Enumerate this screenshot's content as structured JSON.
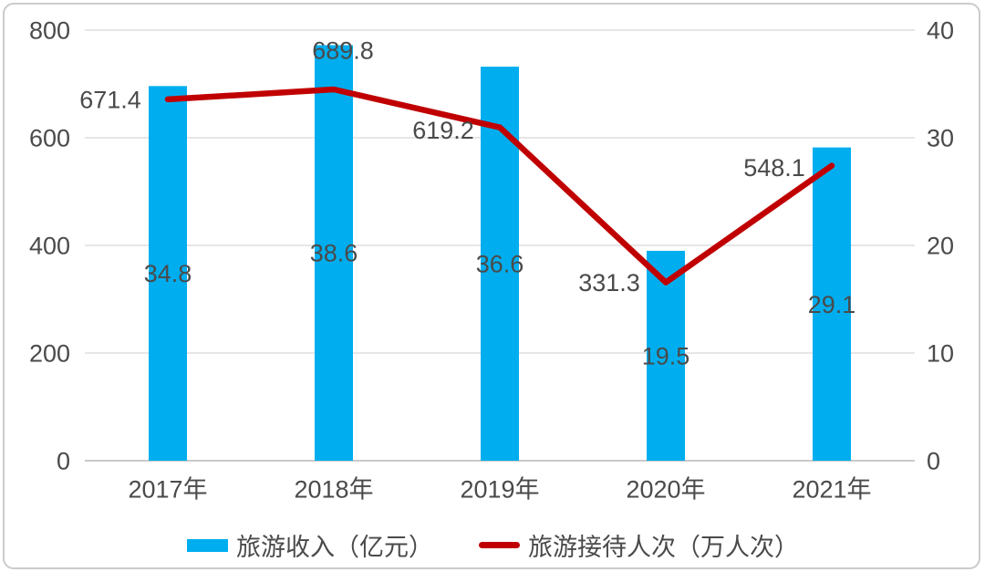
{
  "chart_data": {
    "type": "combo-bar-line",
    "categories": [
      "2017年",
      "2018年",
      "2019年",
      "2020年",
      "2021年"
    ],
    "series": [
      {
        "name": "旅游收入（亿元）",
        "type": "bar",
        "axis": "right",
        "values": [
          34.8,
          38.6,
          36.6,
          19.5,
          29.1
        ],
        "labels": [
          "34.8",
          "38.6",
          "36.6",
          "19.5",
          "29.1"
        ]
      },
      {
        "name": "旅游接待人次（万人次）",
        "type": "line",
        "axis": "left",
        "values": [
          671.4,
          689.8,
          619.2,
          331.3,
          548.1
        ],
        "labels": [
          "671.4",
          "689.8",
          "619.2",
          "331.3",
          "548.1"
        ]
      }
    ],
    "axes": {
      "left": {
        "min": 0,
        "max": 800,
        "ticks": [
          {
            "value": 0,
            "label": "0"
          },
          {
            "value": 200,
            "label": "200"
          },
          {
            "value": 400,
            "label": "400"
          },
          {
            "value": 600,
            "label": "600"
          },
          {
            "value": 800,
            "label": "800"
          }
        ]
      },
      "right": {
        "min": 0,
        "max": 40,
        "ticks": [
          {
            "value": 0,
            "label": "0"
          },
          {
            "value": 10,
            "label": "10"
          },
          {
            "value": 20,
            "label": "20"
          },
          {
            "value": 30,
            "label": "30"
          },
          {
            "value": 40,
            "label": "40"
          }
        ]
      }
    },
    "grid": true,
    "legend_position": "bottom",
    "title": ""
  },
  "colors": {
    "bar": "#00AEEF",
    "line": "#C00000",
    "grid": "#DEDEDE",
    "axis_line": "#C9C9C9",
    "text": "#4A4A4A",
    "card_border": "#CBCBCB",
    "background": "#FFFFFF"
  }
}
